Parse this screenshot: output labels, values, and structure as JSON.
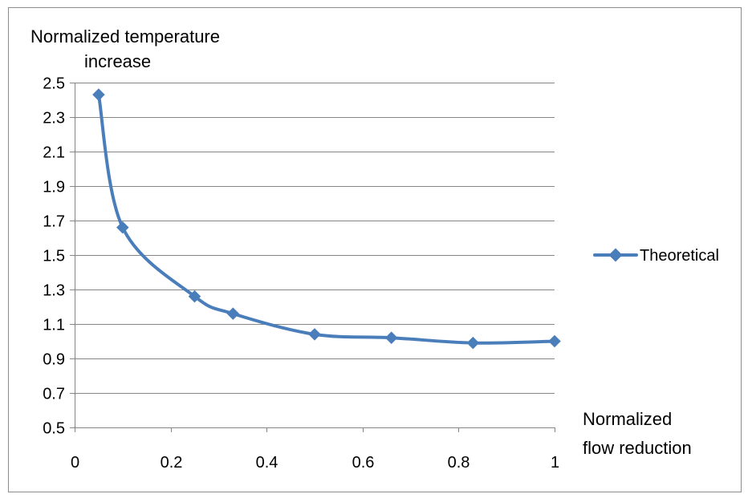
{
  "chart_data": {
    "type": "line",
    "title": "",
    "ylabel_lines": [
      "Normalized temperature",
      "increase"
    ],
    "xlabel_lines": [
      "Normalized",
      "flow reduction"
    ],
    "xlim": [
      0,
      1
    ],
    "ylim": [
      0.5,
      2.5
    ],
    "x_ticks": [
      0,
      0.2,
      0.4,
      0.6,
      0.8,
      1
    ],
    "x_tick_labels": [
      "0",
      "0.2",
      "0.4",
      "0.6",
      "0.8",
      "1"
    ],
    "y_ticks": [
      0.5,
      0.7,
      0.9,
      1.1,
      1.3,
      1.5,
      1.7,
      1.9,
      2.1,
      2.3,
      2.5
    ],
    "y_tick_labels": [
      "0.5",
      "0.7",
      "0.9",
      "1.1",
      "1.3",
      "1.5",
      "1.7",
      "1.9",
      "2.1",
      "2.3",
      "2.5"
    ],
    "grid": "horizontal",
    "legend_position": "right",
    "smooth": true,
    "series": [
      {
        "name": "Theoretical",
        "color": "#4a7ebb",
        "marker": "diamond",
        "x": [
          0.05,
          0.1,
          0.25,
          0.33,
          0.5,
          0.66,
          0.83,
          1.0
        ],
        "y": [
          2.43,
          1.66,
          1.26,
          1.16,
          1.04,
          1.02,
          0.99,
          1.0
        ]
      }
    ]
  }
}
